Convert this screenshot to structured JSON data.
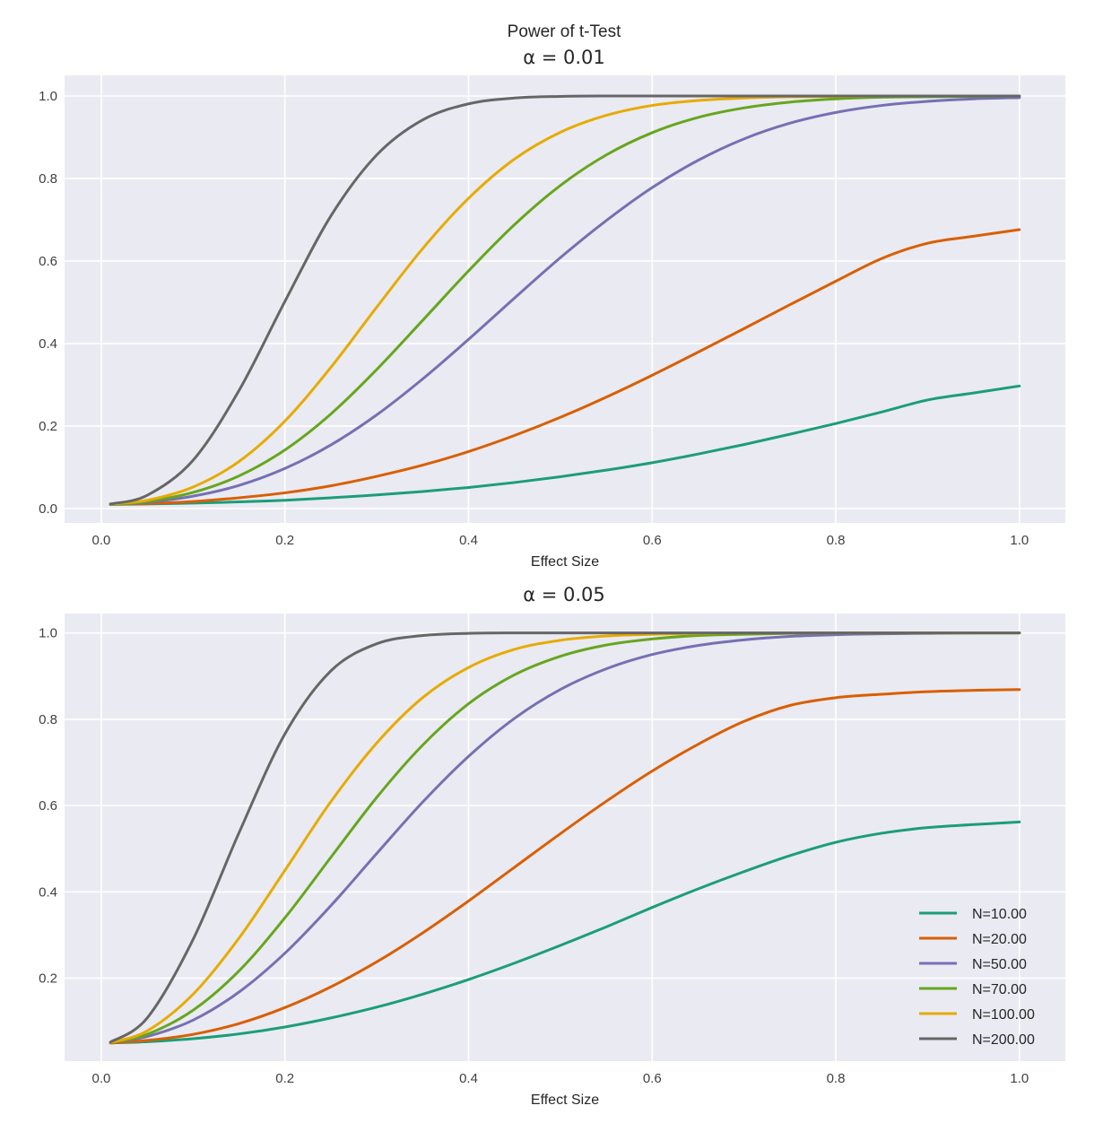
{
  "chart_data": {
    "type": "line",
    "suptitle": "Power of t-Test",
    "x": [
      0.01,
      0.05,
      0.1,
      0.15,
      0.2,
      0.25,
      0.3,
      0.35,
      0.4,
      0.45,
      0.5,
      0.55,
      0.6,
      0.65,
      0.7,
      0.75,
      0.8,
      0.85,
      0.9,
      0.95,
      1.0
    ],
    "legend": {
      "placement": "lower-right",
      "panel": 1
    },
    "colors": {
      "N=10.00": "#1b9e77",
      "N=20.00": "#d95f02",
      "N=50.00": "#7570b3",
      "N=70.00": "#66a61e",
      "N=100.00": "#e6ab02",
      "N=200.00": "#666666"
    },
    "style": {
      "axes_bg": "#eaeaf2",
      "grid": "#ffffff"
    },
    "panels": [
      {
        "title": "α = 0.01",
        "xlabel": "Effect Size",
        "ylabel": "",
        "xlim": [
          -0.04,
          1.05
        ],
        "ylim": [
          -0.035,
          1.05
        ],
        "grid": true,
        "xticks": [
          "0.0",
          "0.2",
          "0.4",
          "0.6",
          "0.8",
          "1.0"
        ],
        "xtick_values": [
          0.0,
          0.2,
          0.4,
          0.6,
          0.8,
          1.0
        ],
        "yticks": [
          "0.0",
          "0.2",
          "0.4",
          "0.6",
          "0.8",
          "1.0"
        ],
        "ytick_values": [
          0.0,
          0.2,
          0.4,
          0.6,
          0.8,
          1.0
        ],
        "series": [
          {
            "name": "N=10.00",
            "values": [
              0.01,
              0.011,
              0.013,
              0.016,
              0.02,
              0.026,
              0.033,
              0.041,
              0.051,
              0.063,
              0.077,
              0.093,
              0.111,
              0.132,
              0.155,
              0.18,
              0.206,
              0.234,
              0.263,
              0.28,
              0.297
            ]
          },
          {
            "name": "N=20.00",
            "values": [
              0.01,
              0.012,
              0.017,
              0.026,
              0.038,
              0.055,
              0.078,
              0.105,
              0.138,
              0.177,
              0.221,
              0.27,
              0.323,
              0.379,
              0.436,
              0.494,
              0.551,
              0.606,
              0.643,
              0.66,
              0.676
            ]
          },
          {
            "name": "N=50.00",
            "values": [
              0.01,
              0.015,
              0.03,
              0.056,
              0.097,
              0.154,
              0.227,
              0.314,
              0.41,
              0.51,
              0.608,
              0.698,
              0.778,
              0.844,
              0.896,
              0.934,
              0.96,
              0.977,
              0.987,
              0.993,
              0.996
            ]
          },
          {
            "name": "N=70.00",
            "values": [
              0.01,
              0.017,
              0.039,
              0.079,
              0.142,
              0.229,
              0.337,
              0.456,
              0.576,
              0.688,
              0.783,
              0.857,
              0.911,
              0.948,
              0.971,
              0.985,
              0.993,
              0.997,
              0.998,
              0.999,
              1.0
            ]
          },
          {
            "name": "N=100.00",
            "values": [
              0.011,
              0.02,
              0.052,
              0.114,
              0.212,
              0.342,
              0.488,
              0.63,
              0.752,
              0.847,
              0.912,
              0.953,
              0.977,
              0.989,
              0.995,
              0.998,
              0.999,
              1.0,
              1.0,
              1.0,
              1.0
            ]
          },
          {
            "name": "N=200.00",
            "values": [
              0.011,
              0.032,
              0.117,
              0.286,
              0.502,
              0.709,
              0.857,
              0.942,
              0.981,
              0.995,
              0.999,
              1.0,
              1.0,
              1.0,
              1.0,
              1.0,
              1.0,
              1.0,
              1.0,
              1.0,
              1.0
            ]
          }
        ]
      },
      {
        "title": "α = 0.05",
        "xlabel": "Effect Size",
        "ylabel": "",
        "xlim": [
          -0.04,
          1.05
        ],
        "ylim": [
          0.008,
          1.045
        ],
        "grid": true,
        "xticks": [
          "0.0",
          "0.2",
          "0.4",
          "0.6",
          "0.8",
          "1.0"
        ],
        "xtick_values": [
          0.0,
          0.2,
          0.4,
          0.6,
          0.8,
          1.0
        ],
        "yticks": [
          "0.2",
          "0.4",
          "0.6",
          "0.8",
          "1.0"
        ],
        "ytick_values": [
          0.2,
          0.4,
          0.6,
          0.8,
          1.0
        ],
        "series": [
          {
            "name": "N=10.00",
            "values": [
              0.05,
              0.053,
              0.06,
              0.071,
              0.087,
              0.108,
              0.133,
              0.163,
              0.197,
              0.235,
              0.276,
              0.319,
              0.364,
              0.407,
              0.447,
              0.484,
              0.515,
              0.536,
              0.549,
              0.556,
              0.562
            ]
          },
          {
            "name": "N=20.00",
            "values": [
              0.05,
              0.056,
              0.07,
              0.095,
              0.132,
              0.18,
              0.238,
              0.305,
              0.379,
              0.457,
              0.535,
              0.61,
              0.68,
              0.742,
              0.795,
              0.832,
              0.85,
              0.858,
              0.864,
              0.867,
              0.869
            ]
          },
          {
            "name": "N=50.00",
            "values": [
              0.051,
              0.065,
              0.103,
              0.168,
              0.258,
              0.368,
              0.489,
              0.608,
              0.714,
              0.802,
              0.869,
              0.917,
              0.95,
              0.971,
              0.984,
              0.992,
              0.996,
              0.998,
              0.999,
              1.0,
              1.0
            ]
          },
          {
            "name": "N=70.00",
            "values": [
              0.051,
              0.07,
              0.126,
              0.217,
              0.34,
              0.48,
              0.619,
              0.74,
              0.836,
              0.903,
              0.946,
              0.972,
              0.986,
              0.994,
              0.997,
              0.999,
              1.0,
              1.0,
              1.0,
              1.0,
              1.0
            ]
          },
          {
            "name": "N=100.00",
            "values": [
              0.051,
              0.078,
              0.163,
              0.293,
              0.45,
              0.609,
              0.745,
              0.85,
              0.92,
              0.962,
              0.983,
              0.993,
              0.997,
              0.999,
              1.0,
              1.0,
              1.0,
              1.0,
              1.0,
              1.0,
              1.0
            ]
          },
          {
            "name": "N=200.00",
            "values": [
              0.052,
              0.108,
              0.29,
              0.537,
              0.766,
              0.912,
              0.975,
              0.994,
              0.999,
              1.0,
              1.0,
              1.0,
              1.0,
              1.0,
              1.0,
              1.0,
              1.0,
              1.0,
              1.0,
              1.0,
              1.0
            ]
          }
        ]
      }
    ]
  }
}
